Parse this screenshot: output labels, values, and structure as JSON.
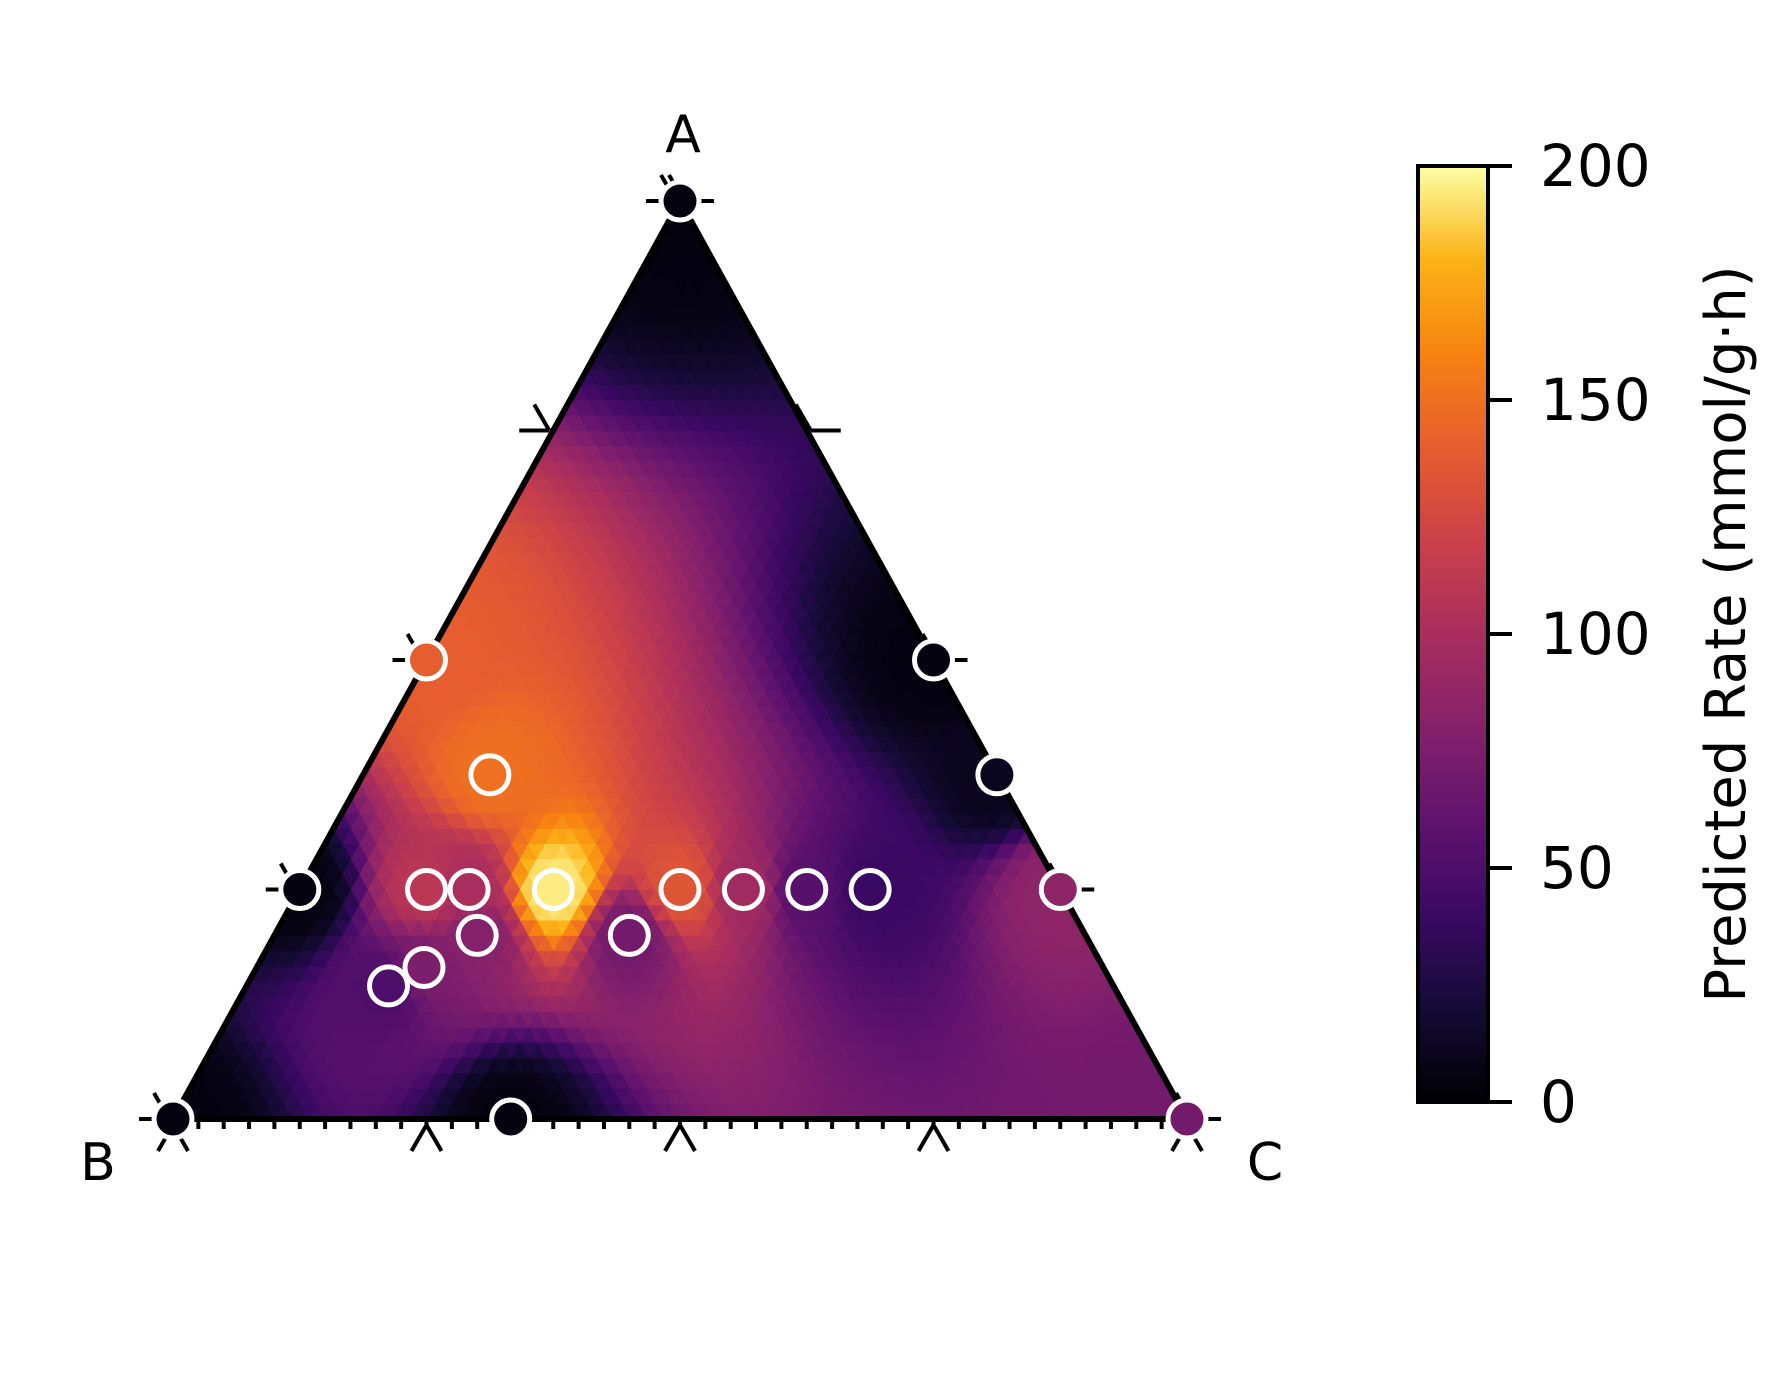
{
  "chart_data": {
    "type": "ternary-heatmap",
    "title": "",
    "corner_labels": {
      "top": "A",
      "left": "B",
      "right": "C"
    },
    "colorbar": {
      "label": "Predicted Rate (mmol/g·h)",
      "min": 0,
      "max": 200,
      "ticks": [
        0,
        50,
        100,
        150,
        200
      ],
      "tick_labels": [
        "0",
        "50",
        "100",
        "150",
        "200"
      ],
      "colormap": "inferno"
    },
    "grid_ticks_fractions": [
      0,
      0.25,
      0.5,
      0.75,
      1
    ],
    "points": [
      {
        "A": 1.0,
        "B": 0.0,
        "C": 0.0,
        "value": 5
      },
      {
        "A": 0.0,
        "B": 1.0,
        "C": 0.0,
        "value": 5
      },
      {
        "A": 0.0,
        "B": 0.0,
        "C": 1.0,
        "value": 70
      },
      {
        "A": 0.0,
        "B": 0.667,
        "C": 0.333,
        "value": 5
      },
      {
        "A": 0.5,
        "B": 0.5,
        "C": 0.0,
        "value": 140
      },
      {
        "A": 0.5,
        "B": 0.0,
        "C": 0.5,
        "value": 5
      },
      {
        "A": 0.25,
        "B": 0.75,
        "C": 0.0,
        "value": 5
      },
      {
        "A": 0.25,
        "B": 0.0,
        "C": 0.75,
        "value": 85
      },
      {
        "A": 0.375,
        "B": 0.0,
        "C": 0.625,
        "value": 10
      },
      {
        "A": 0.375,
        "B": 0.5,
        "C": 0.125,
        "value": 150
      },
      {
        "A": 0.25,
        "B": 0.625,
        "C": 0.125,
        "value": 110
      },
      {
        "A": 0.25,
        "B": 0.583,
        "C": 0.167,
        "value": 100
      },
      {
        "A": 0.25,
        "B": 0.5,
        "C": 0.25,
        "value": 195
      },
      {
        "A": 0.25,
        "B": 0.375,
        "C": 0.375,
        "value": 135
      },
      {
        "A": 0.25,
        "B": 0.3125,
        "C": 0.4375,
        "value": 95
      },
      {
        "A": 0.25,
        "B": 0.25,
        "C": 0.5,
        "value": 55
      },
      {
        "A": 0.25,
        "B": 0.1875,
        "C": 0.5625,
        "value": 40
      },
      {
        "A": 0.2,
        "B": 0.6,
        "C": 0.2,
        "value": 80
      },
      {
        "A": 0.2,
        "B": 0.45,
        "C": 0.35,
        "value": 70
      },
      {
        "A": 0.165,
        "B": 0.67,
        "C": 0.165,
        "value": 75
      },
      {
        "A": 0.145,
        "B": 0.715,
        "C": 0.14,
        "value": 50
      }
    ]
  }
}
